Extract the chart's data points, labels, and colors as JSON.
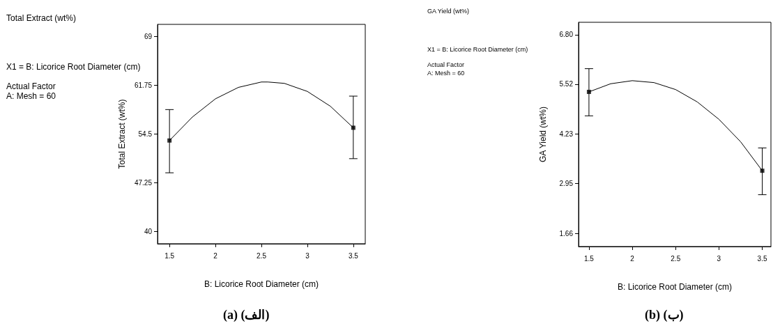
{
  "chart_data": [
    {
      "type": "line",
      "title": "(a) (الف)",
      "xlabel": "B: Licorice Root Diameter (cm)",
      "ylabel": "Total Extract (wt%)",
      "annotations": [
        "Total Extract (wt%)",
        "X1 = B: Licorice Root Diameter (cm)",
        "Actual Factor",
        "A: Mesh = 60"
      ],
      "xlim": [
        1.37,
        3.63
      ],
      "xticks": [
        1.5,
        2,
        2.5,
        3,
        3.5
      ],
      "ylim": [
        38.15,
        70.77
      ],
      "yticks": [
        40,
        47.25,
        54.5,
        61.75,
        69
      ],
      "grid": false,
      "series": [
        {
          "color": "#000000",
          "marker": "none",
          "line_style": "solid",
          "x": [
            1.5,
            1.75,
            2,
            2.25,
            2.5,
            2.57,
            2.75,
            3,
            3.25,
            3.5
          ],
          "values": [
            53.5,
            57.0,
            59.7,
            61.4,
            62.2,
            62.2,
            62.0,
            60.8,
            58.6,
            55.4
          ]
        },
        {
          "type": "scatter",
          "color": "#000000",
          "marker": "square",
          "x": [
            1.5,
            3.5
          ],
          "values": [
            53.5,
            55.4
          ],
          "errors": [
            [
              48.7,
              58.1
            ],
            [
              50.8,
              60.1
            ]
          ]
        }
      ]
    },
    {
      "type": "line",
      "title": "(b) (ب)",
      "xlabel": "B: Licorice Root Diameter (cm)",
      "ylabel": "GA Yield (wt%)",
      "annotations": [
        "GA Yield (wt%)",
        "X1 = B: Licorice Root Diameter (cm)",
        "Actual Factor",
        "A: Mesh = 60"
      ],
      "xlim": [
        1.38,
        3.6
      ],
      "xticks": [
        1.5,
        2,
        2.5,
        3,
        3.5
      ],
      "ylim": [
        1.32,
        7.12
      ],
      "yticks": [
        1.66,
        2.95,
        4.23,
        5.52,
        {
          "value": 6.8,
          "label": "6.80"
        }
      ],
      "grid": false,
      "series": [
        {
          "color": "#000000",
          "marker": "none",
          "line_style": "solid",
          "x": [
            1.5,
            1.75,
            2,
            2.25,
            2.5,
            2.75,
            3,
            3.25,
            3.5
          ],
          "values": [
            5.32,
            5.53,
            5.61,
            5.56,
            5.38,
            5.06,
            4.61,
            4.03,
            3.28
          ]
        },
        {
          "type": "scatter",
          "color": "#000000",
          "marker": "square",
          "x": [
            1.5,
            3.5
          ],
          "values": [
            5.32,
            3.28
          ],
          "errors": [
            [
              4.7,
              5.92
            ],
            [
              2.66,
              3.87
            ]
          ]
        }
      ]
    }
  ]
}
